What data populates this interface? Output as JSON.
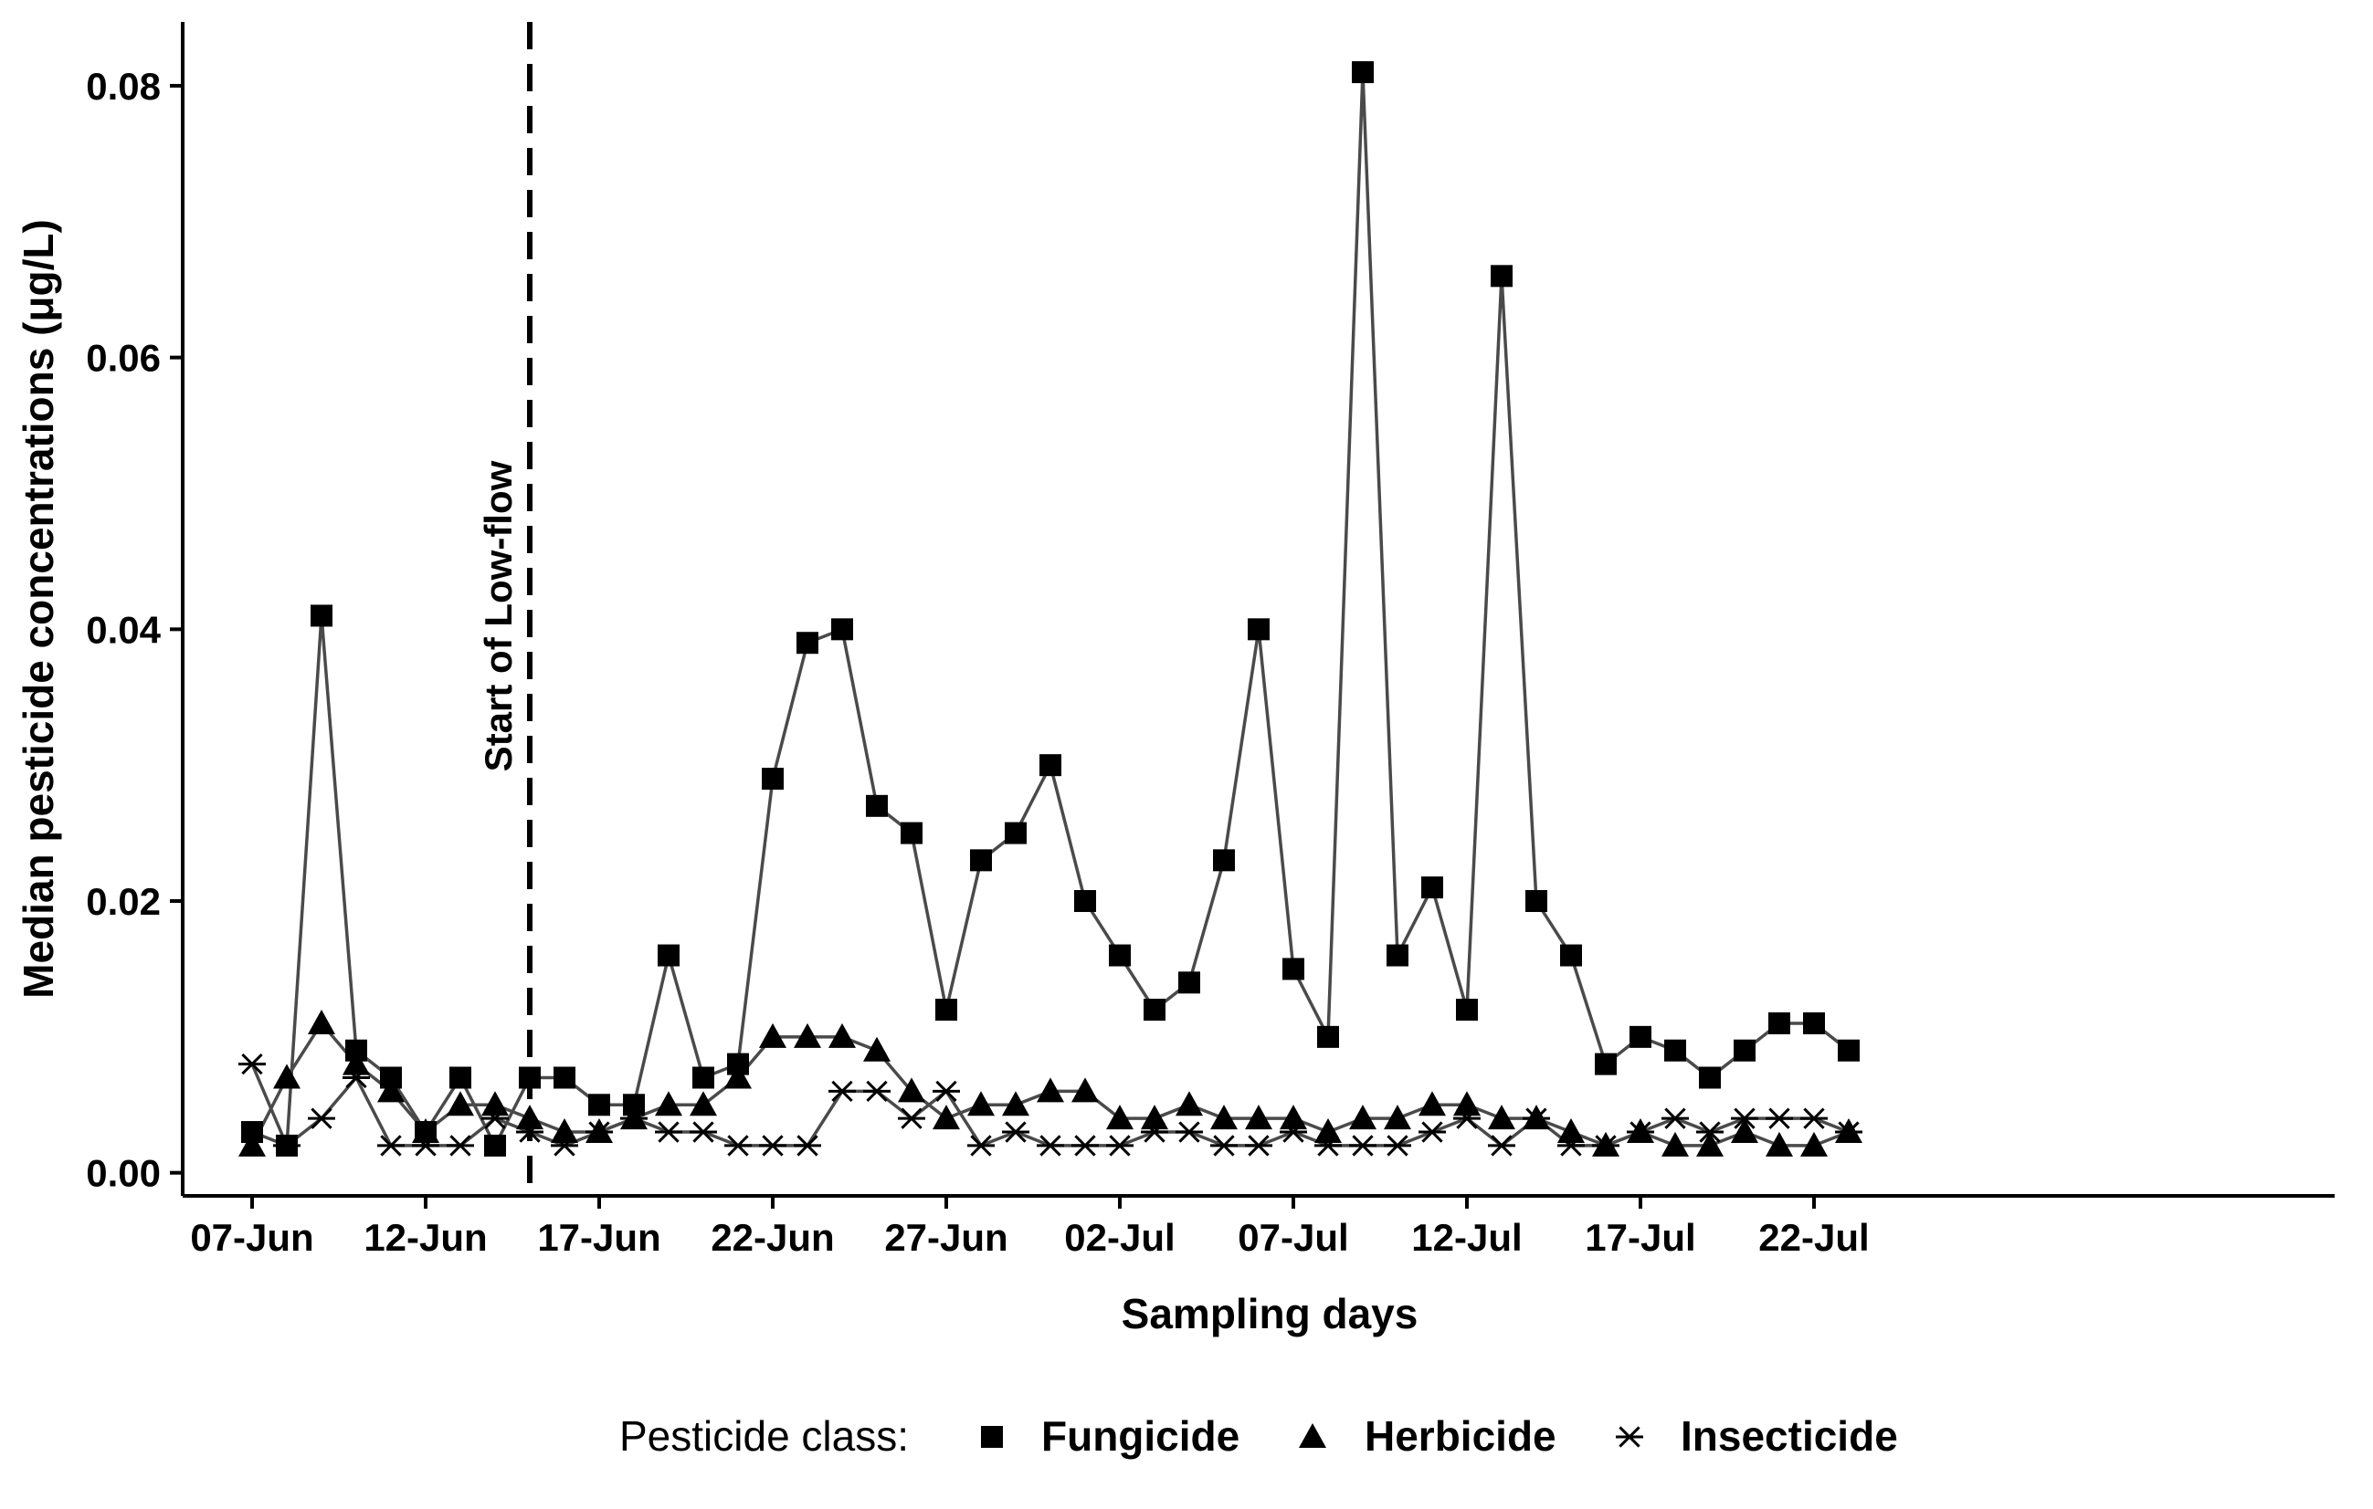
{
  "chart_data": {
    "type": "line",
    "title": "",
    "xlabel": "Sampling days",
    "ylabel": "Median pesticide concentrations (μg/L)",
    "ylim": [
      -0.0017,
      0.0847
    ],
    "xlim": [
      0,
      62
    ],
    "x_tick_labels": [
      "07-Jun",
      "12-Jun",
      "17-Jun",
      "22-Jun",
      "27-Jun",
      "02-Jul",
      "07-Jul",
      "12-Jul",
      "17-Jul",
      "22-Jul"
    ],
    "x_tick_days": [
      2,
      7,
      12,
      17,
      22,
      27,
      32,
      37,
      42,
      47
    ],
    "y_ticks": [
      0,
      0.02,
      0.04,
      0.06,
      0.08
    ],
    "y_tick_labels": [
      "0.00",
      "0.02",
      "0.04",
      "0.06",
      "0.08"
    ],
    "annotation": {
      "text": "Start of Low-flow",
      "x": 10
    },
    "legend": {
      "title": "Pesticide class:",
      "position": "bottom"
    },
    "series": [
      {
        "name": "Fungicide",
        "marker": "square",
        "x": [
          2,
          3,
          4,
          5,
          6,
          7,
          8,
          9,
          10,
          11,
          12,
          13,
          14,
          15,
          16,
          17,
          18,
          19,
          20,
          21,
          22,
          23,
          24,
          25,
          26,
          27,
          28,
          29,
          30,
          31,
          32,
          33,
          34,
          35,
          36,
          37,
          38,
          39,
          40,
          41,
          42,
          43,
          44,
          45,
          46,
          47,
          48
        ],
        "values": [
          0.003,
          0.002,
          0.041,
          0.009,
          0.007,
          0.003,
          0.007,
          0.002,
          0.007,
          0.007,
          0.005,
          0.005,
          0.016,
          0.007,
          0.008,
          0.029,
          0.039,
          0.04,
          0.027,
          0.025,
          0.012,
          0.023,
          0.025,
          0.03,
          0.02,
          0.016,
          0.012,
          0.014,
          0.023,
          0.04,
          0.015,
          0.01,
          0.081,
          0.016,
          0.021,
          0.012,
          0.066,
          0.02,
          0.016,
          0.008,
          0.01,
          0.009,
          0.007,
          0.009,
          0.011,
          0.011,
          0.009
        ]
      },
      {
        "name": "Herbicide",
        "marker": "triangle",
        "x": [
          2,
          3,
          4,
          5,
          6,
          7,
          8,
          9,
          10,
          11,
          12,
          13,
          14,
          15,
          16,
          17,
          18,
          19,
          20,
          21,
          22,
          23,
          24,
          25,
          26,
          27,
          28,
          29,
          30,
          31,
          32,
          33,
          34,
          35,
          36,
          37,
          38,
          39,
          40,
          41,
          42,
          43,
          44,
          45,
          46,
          47,
          48
        ],
        "values": [
          0.002,
          0.007,
          0.011,
          0.008,
          0.006,
          0.003,
          0.005,
          0.005,
          0.004,
          0.003,
          0.003,
          0.004,
          0.005,
          0.005,
          0.007,
          0.01,
          0.01,
          0.01,
          0.009,
          0.006,
          0.004,
          0.005,
          0.005,
          0.006,
          0.006,
          0.004,
          0.004,
          0.005,
          0.004,
          0.004,
          0.004,
          0.003,
          0.004,
          0.004,
          0.005,
          0.005,
          0.004,
          0.004,
          0.003,
          0.002,
          0.003,
          0.002,
          0.002,
          0.003,
          0.002,
          0.002,
          0.003
        ]
      },
      {
        "name": "Insecticide",
        "marker": "asterisk",
        "x": [
          2,
          3,
          4,
          5,
          6,
          7,
          8,
          9,
          10,
          11,
          12,
          13,
          14,
          15,
          16,
          17,
          18,
          19,
          20,
          21,
          22,
          23,
          24,
          25,
          26,
          27,
          28,
          29,
          30,
          31,
          32,
          33,
          34,
          35,
          36,
          37,
          38,
          39,
          40,
          41,
          42,
          43,
          44,
          45,
          46,
          47,
          48
        ],
        "values": [
          0.008,
          0.002,
          0.004,
          0.007,
          0.002,
          0.002,
          0.002,
          0.004,
          0.003,
          0.002,
          0.003,
          0.004,
          0.003,
          0.003,
          0.002,
          0.002,
          0.002,
          0.006,
          0.006,
          0.004,
          0.006,
          0.002,
          0.003,
          0.002,
          0.002,
          0.002,
          0.003,
          0.003,
          0.002,
          0.002,
          0.003,
          0.002,
          0.002,
          0.002,
          0.003,
          0.004,
          0.002,
          0.004,
          0.002,
          0.002,
          0.003,
          0.004,
          0.003,
          0.004,
          0.004,
          0.004,
          0.003
        ]
      }
    ]
  }
}
